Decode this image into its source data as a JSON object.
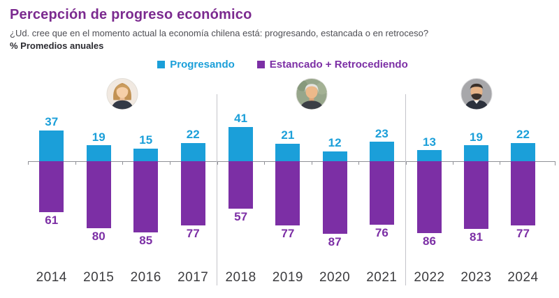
{
  "header": {
    "title": "Percepción de progreso económico",
    "subtitle": "¿Ud. cree que en el momento actual la economía chilena está: progresando, estancada o en retroceso?",
    "note": "% Promedios anuales"
  },
  "legend": [
    {
      "label": "Progresando",
      "color": "#1b9fd9"
    },
    {
      "label": "Estancado + Retrocediendo",
      "color": "#7c2fa5"
    }
  ],
  "chart_data": {
    "type": "bar",
    "subtype": "diverging",
    "title": "Percepción de progreso económico",
    "unit": "%",
    "categories": [
      "2014",
      "2015",
      "2016",
      "2017",
      "2018",
      "2019",
      "2020",
      "2021",
      "2022",
      "2023",
      "2024"
    ],
    "series": [
      {
        "name": "Progresando",
        "color": "#1b9fd9",
        "direction": "up",
        "values": [
          37,
          19,
          15,
          22,
          41,
          21,
          12,
          23,
          13,
          19,
          22
        ]
      },
      {
        "name": "Estancado + Retrocediendo",
        "color": "#7c2fa5",
        "direction": "down",
        "values": [
          61,
          80,
          85,
          77,
          57,
          77,
          87,
          76,
          86,
          81,
          77
        ]
      }
    ],
    "groups": [
      {
        "years": [
          "2014",
          "2015",
          "2016",
          "2017"
        ],
        "avatar": "michelle-bachelet"
      },
      {
        "years": [
          "2018",
          "2019",
          "2020",
          "2021"
        ],
        "avatar": "sebastian-pinera"
      },
      {
        "years": [
          "2022",
          "2023",
          "2024"
        ],
        "avatar": "gabriel-boric"
      }
    ],
    "axis": {
      "zero_line": true,
      "gridlines": false,
      "value_labels": true
    },
    "legend_position": "top-center"
  },
  "colors": {
    "title": "#7b2a8f",
    "progresando": "#1b9fd9",
    "estancado": "#7c2fa5",
    "axis_line": "#8f9096",
    "divider": "#c4c4ca",
    "year_label": "#3c3c3f",
    "subtitle_text": "#4e4e54"
  }
}
